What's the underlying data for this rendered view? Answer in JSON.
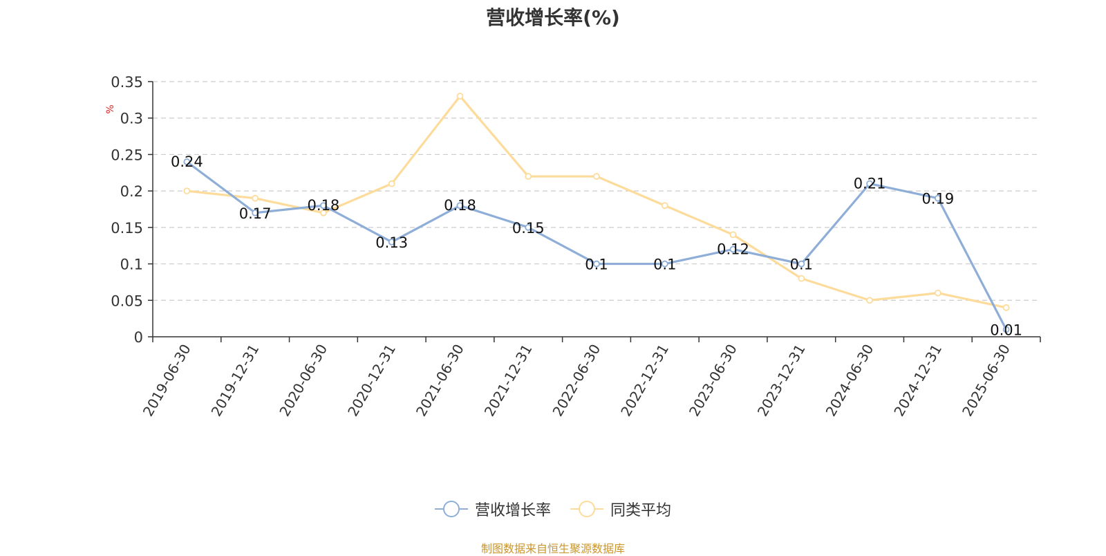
{
  "chart_data": {
    "type": "line",
    "title": "营收增长率(%)",
    "ylabel": "%",
    "ylim": [
      0,
      0.35
    ],
    "yticks": [
      "0",
      "0.05",
      "0.1",
      "0.15",
      "0.2",
      "0.25",
      "0.3",
      "0.35"
    ],
    "categories": [
      "2019-06-30",
      "2019-12-31",
      "2020-06-30",
      "2020-12-31",
      "2021-06-30",
      "2021-12-31",
      "2022-06-30",
      "2022-12-31",
      "2023-06-30",
      "2023-12-31",
      "2024-06-30",
      "2024-12-31",
      "2025-06-30"
    ],
    "grid": true,
    "legend_position": "bottom",
    "series": [
      {
        "name": "营收增长率",
        "color": "#8eaed8",
        "values": [
          0.24,
          0.17,
          0.18,
          0.13,
          0.18,
          0.15,
          0.1,
          0.1,
          0.12,
          0.1,
          0.21,
          0.19,
          0.01
        ],
        "labels": [
          "0.24",
          "0.17",
          "0.18",
          "0.13",
          "0.18",
          "0.15",
          "0.1",
          "0.1",
          "0.12",
          "0.1",
          "0.21",
          "0.19",
          "0.01"
        ]
      },
      {
        "name": "同类平均",
        "color": "#fddb9b",
        "values": [
          0.2,
          0.19,
          0.17,
          0.21,
          0.33,
          0.22,
          0.22,
          0.18,
          0.14,
          0.08,
          0.05,
          0.06,
          0.04
        ]
      }
    ]
  },
  "footer": {
    "source": "制图数据来自恒生聚源数据库"
  }
}
